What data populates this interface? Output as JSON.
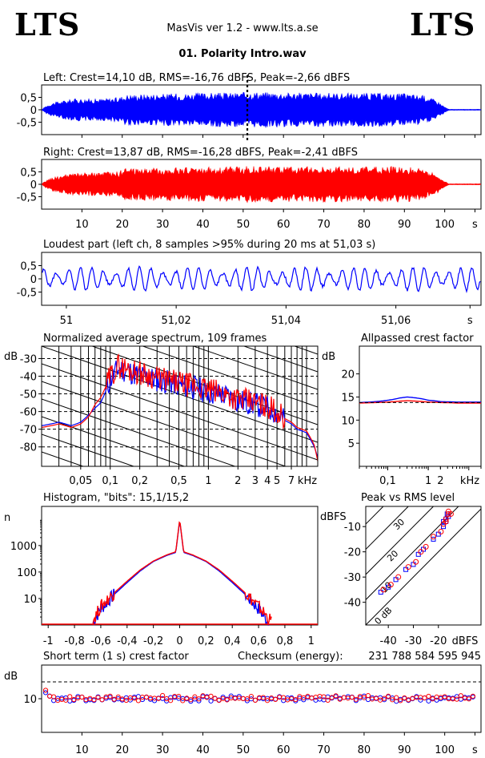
{
  "header": {
    "logo_left": "LTS",
    "logo_right": "LTS",
    "app_title": "MasVis ver 1.2 - www.lts.a.se",
    "file_title": "01. Polarity Intro.wav"
  },
  "colors": {
    "left": "#0000ff",
    "right": "#ff0000"
  },
  "chart_data": [
    {
      "type": "area",
      "id": "left-waveform",
      "title": "Left: Crest=14,10 dB, RMS=-16,76 dBFS, Peak=-2,66 dBFS",
      "ytick_labels": [
        "0,5",
        "0",
        "-0,5"
      ],
      "ytick_values": [
        0.5,
        0,
        -0.5
      ],
      "ylim": [
        -1,
        1
      ],
      "xlim": [
        0,
        109
      ],
      "marker_time_s": 51.03,
      "envelope": {
        "t": [
          0,
          1,
          3,
          8,
          15,
          19,
          21,
          30,
          40,
          50,
          51,
          60,
          70,
          80,
          90,
          95,
          98,
          100,
          101,
          109
        ],
        "amp": [
          0,
          0.15,
          0.3,
          0.45,
          0.45,
          0.5,
          0.62,
          0.65,
          0.68,
          0.7,
          0.74,
          0.7,
          0.68,
          0.68,
          0.66,
          0.58,
          0.38,
          0.12,
          0.02,
          0.02
        ]
      }
    },
    {
      "type": "area",
      "id": "right-waveform",
      "title": "Right: Crest=13,87 dB, RMS=-16,28 dBFS, Peak=-2,41 dBFS",
      "ytick_labels": [
        "0,5",
        "0",
        "-0,5"
      ],
      "ytick_values": [
        0.5,
        0,
        -0.5
      ],
      "ylim": [
        -1,
        1
      ],
      "xlim": [
        0,
        109
      ],
      "xtick_labels": [
        "10",
        "20",
        "30",
        "40",
        "50",
        "60",
        "70",
        "80",
        "90",
        "100",
        "s"
      ],
      "xtick_values": [
        10,
        20,
        30,
        40,
        50,
        60,
        70,
        80,
        90,
        100,
        107.5
      ],
      "envelope": {
        "t": [
          0,
          1,
          3,
          8,
          15,
          19,
          21,
          30,
          40,
          50,
          51,
          60,
          70,
          80,
          90,
          95,
          98,
          100,
          101,
          109
        ],
        "amp": [
          0,
          0.15,
          0.3,
          0.45,
          0.48,
          0.52,
          0.66,
          0.66,
          0.7,
          0.72,
          0.74,
          0.72,
          0.72,
          0.7,
          0.74,
          0.6,
          0.4,
          0.12,
          0.02,
          0.02
        ]
      }
    },
    {
      "type": "line",
      "id": "loudest-part",
      "title": "Loudest part (left  ch, 8 samples >95% during 20 ms at 51,03 s)",
      "ytick_labels": [
        "0,5",
        "0",
        "-0,5"
      ],
      "ytick_values": [
        0.5,
        0,
        -0.5
      ],
      "ylim": [
        -1,
        1
      ],
      "xlim": [
        50.9955,
        51.0755
      ],
      "xtick_labels": [
        "51",
        "51,02",
        "51,04",
        "51,06",
        "s"
      ],
      "xtick_values": [
        51.0,
        51.02,
        51.04,
        51.06,
        51.0735
      ],
      "cycles_per_window": 37,
      "amplitude": 0.32
    },
    {
      "type": "line",
      "id": "average-spectrum",
      "title": "Normalized average spectrum, 109 frames",
      "ylabel": "dB",
      "ytick_labels": [
        "-30",
        "-40",
        "-50",
        "-60",
        "-70",
        "-80"
      ],
      "ytick_values": [
        -30,
        -40,
        -50,
        -60,
        -70,
        -80
      ],
      "ylim": [
        -91,
        -23
      ],
      "xscale": "log",
      "xlim": [
        0.02,
        13
      ],
      "xlabel": "kHz",
      "xtick_labels": [
        "0,05",
        "0,1",
        "0,2",
        "0,5",
        "1",
        "2",
        "3",
        "4",
        "5",
        "7"
      ],
      "xtick_values": [
        0.05,
        0.1,
        0.2,
        0.5,
        1,
        2,
        3,
        4,
        5,
        7
      ],
      "grid": true,
      "series": [
        {
          "color": "#0000ff",
          "x": [
            0.02,
            0.03,
            0.04,
            0.05,
            0.06,
            0.07,
            0.08,
            0.1,
            0.12,
            0.15,
            0.2,
            0.3,
            0.5,
            0.8,
            1,
            1.5,
            2,
            3,
            4,
            5,
            6,
            7,
            8,
            10,
            12,
            13
          ],
          "y": [
            -68,
            -66,
            -68,
            -66,
            -62,
            -58,
            -55,
            -42,
            -36,
            -37,
            -40,
            -42,
            -45,
            -47,
            -49,
            -51,
            -54,
            -56,
            -58,
            -61,
            -65,
            -67,
            -70,
            -72,
            -80,
            -86
          ]
        },
        {
          "color": "#ff0000",
          "x": [
            0.02,
            0.03,
            0.04,
            0.05,
            0.06,
            0.07,
            0.08,
            0.1,
            0.12,
            0.15,
            0.2,
            0.3,
            0.5,
            0.8,
            1,
            1.5,
            2,
            3,
            4,
            5,
            6,
            7,
            8,
            10,
            12,
            13
          ],
          "y": [
            -69,
            -67,
            -69,
            -67,
            -63,
            -56,
            -52,
            -40,
            -34,
            -36,
            -38,
            -41,
            -44,
            -46,
            -48,
            -50,
            -53,
            -55,
            -57,
            -60,
            -64,
            -66,
            -69,
            -71,
            -79,
            -88
          ]
        }
      ]
    },
    {
      "type": "line",
      "id": "allpassed-crest",
      "title": "Allpassed crest factor",
      "ylabel": "dB",
      "ytick_labels": [
        "20",
        "15",
        "10",
        "5"
      ],
      "ytick_values": [
        20,
        15,
        10,
        5
      ],
      "ylim": [
        0,
        26
      ],
      "xscale": "log",
      "xlim": [
        0.02,
        20
      ],
      "xlabel": "kHz",
      "xtick_labels": [
        "0,1",
        "1",
        "2"
      ],
      "xtick_values": [
        0.1,
        1,
        2
      ],
      "series": [
        {
          "color": "#0000ff",
          "x": [
            0.02,
            0.05,
            0.1,
            0.2,
            0.3,
            0.5,
            1,
            2,
            5,
            10,
            20
          ],
          "y": [
            13.8,
            14,
            14.3,
            14.8,
            15,
            14.8,
            14.3,
            14,
            13.9,
            13.9,
            13.9
          ]
        },
        {
          "color": "#ff0000",
          "x": [
            0.02,
            0.05,
            0.1,
            0.2,
            0.3,
            0.5,
            1,
            2,
            5,
            10,
            20
          ],
          "y": [
            13.7,
            13.8,
            13.9,
            14.1,
            14.2,
            14.1,
            13.9,
            13.8,
            13.7,
            13.7,
            13.7
          ]
        }
      ]
    },
    {
      "type": "line",
      "id": "histogram",
      "title": "Histogram, \"bits\": 15,1/15,2",
      "ylabel": "n",
      "yscale": "log",
      "ytick_labels": [
        "1000",
        "100",
        "10"
      ],
      "ytick_values": [
        1000,
        100,
        10
      ],
      "ylim": [
        1,
        30000
      ],
      "xlim": [
        -1.05,
        1.05
      ],
      "xtick_labels": [
        "-1",
        "-0,8",
        "-0,6",
        "-0,4",
        "-0,2",
        "0",
        "0,2",
        "0,4",
        "0,6",
        "0,8",
        "1"
      ],
      "xtick_values": [
        -1,
        -0.8,
        -0.6,
        -0.4,
        -0.2,
        0,
        0.2,
        0.4,
        0.6,
        0.8,
        1
      ],
      "series": [
        {
          "color": "#0000ff",
          "x": [
            -0.66,
            -0.6,
            -0.5,
            -0.4,
            -0.3,
            -0.2,
            -0.1,
            -0.03,
            0,
            0.03,
            0.1,
            0.2,
            0.3,
            0.4,
            0.5,
            0.6,
            0.68
          ],
          "y": [
            1.2,
            4,
            14,
            40,
            110,
            250,
            420,
            550,
            9000,
            550,
            420,
            250,
            110,
            40,
            14,
            4,
            1.2
          ]
        },
        {
          "color": "#ff0000",
          "x": [
            -0.66,
            -0.6,
            -0.5,
            -0.4,
            -0.3,
            -0.2,
            -0.1,
            -0.03,
            0,
            0.03,
            0.1,
            0.2,
            0.3,
            0.4,
            0.5,
            0.6,
            0.7
          ],
          "y": [
            1.5,
            5,
            16,
            45,
            120,
            260,
            440,
            580,
            9500,
            580,
            440,
            260,
            120,
            45,
            16,
            5,
            1.3
          ]
        }
      ]
    },
    {
      "type": "scatter",
      "id": "peak-vs-rms",
      "title": "Peak vs RMS level",
      "ylabel": "dBFS",
      "xlabel": "dBFS",
      "ytick_labels": [
        "-10",
        "-20",
        "-30",
        "-40"
      ],
      "ytick_values": [
        -10,
        -20,
        -30,
        -40
      ],
      "ylim": [
        -49,
        -2
      ],
      "xtick_labels": [
        "-40",
        "-30",
        "-20"
      ],
      "xtick_values": [
        -40,
        -30,
        -20
      ],
      "xlim": [
        -49,
        -3
      ],
      "crest_line_labels": [
        "40",
        "30",
        "20",
        "10",
        "0 dB"
      ],
      "crest_line_values": [
        40,
        30,
        20,
        10,
        0
      ],
      "series": [
        {
          "color": "#0000ff",
          "x": [
            -43,
            -40,
            -37,
            -33,
            -30,
            -28,
            -26,
            -22,
            -20,
            -18,
            -17,
            -16,
            -17,
            -18,
            -16.5
          ],
          "y": [
            -36,
            -34,
            -31,
            -27,
            -25,
            -21,
            -19,
            -15,
            -13,
            -10,
            -8,
            -6,
            -7,
            -8,
            -5
          ]
        },
        {
          "color": "#ff0000",
          "x": [
            -42,
            -39,
            -36,
            -32,
            -29,
            -27,
            -25,
            -22,
            -19,
            -18,
            -17,
            -16,
            -15,
            -17,
            -16
          ],
          "y": [
            -35,
            -33,
            -30,
            -26,
            -24,
            -20,
            -18,
            -14,
            -12,
            -9,
            -7,
            -5,
            -5,
            -8,
            -4
          ]
        }
      ]
    },
    {
      "type": "scatter",
      "id": "short-term-crest",
      "title": "Short term (1 s) crest factor",
      "ylabel": "dB",
      "ytick_labels": [
        "10"
      ],
      "ytick_values": [
        10
      ],
      "ylim": [
        0,
        20
      ],
      "xlim": [
        0,
        109
      ],
      "dashed_line_value": 15,
      "xtick_labels": [
        "10",
        "20",
        "30",
        "40",
        "50",
        "60",
        "70",
        "80",
        "90",
        "100",
        "s"
      ],
      "xtick_values": [
        10,
        20,
        30,
        40,
        50,
        60,
        70,
        80,
        90,
        100,
        107.5
      ],
      "checksum_label": "Checksum (energy):",
      "checksum_value": "231 788 584 595 945",
      "series": [
        {
          "color": "#0000ff",
          "mean": 10,
          "spread": 0.8
        },
        {
          "color": "#ff0000",
          "mean": 10.2,
          "spread": 0.8
        }
      ]
    }
  ]
}
